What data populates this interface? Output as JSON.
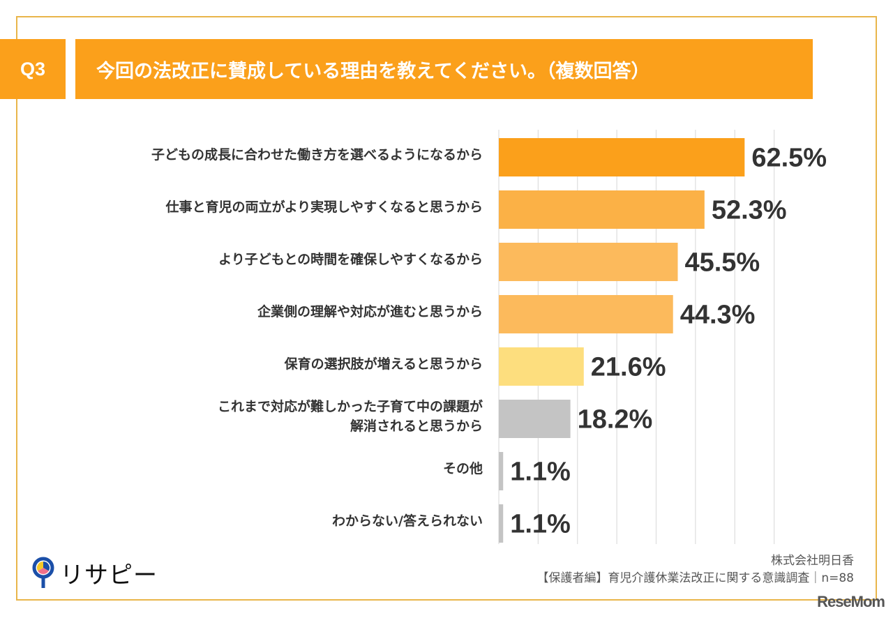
{
  "header": {
    "question_number": "Q3",
    "title": "今回の法改正に賛成している理由を教えてください。（複数回答）"
  },
  "chart_data": {
    "type": "bar",
    "orientation": "horizontal",
    "title": "今回の法改正に賛成している理由を教えてください。（複数回答）",
    "xlabel": "",
    "ylabel": "",
    "xlim": [
      0,
      100
    ],
    "grid": true,
    "grid_step": 10,
    "categories": [
      "子どもの成長に合わせた働き方を選べるようになるから",
      "仕事と育児の両立がより実現しやすくなると思うから",
      "より子どもとの時間を確保しやすくなるから",
      "企業側の理解や対応が進むと思うから",
      "保育の選択肢が増えると思うから",
      "これまで対応が難しかった子育て中の課題が\n解消されると思うから",
      "その他",
      "わからない/答えられない"
    ],
    "values": [
      62.5,
      52.3,
      45.5,
      44.3,
      21.6,
      18.2,
      1.1,
      1.1
    ],
    "value_labels": [
      "62.5%",
      "52.3%",
      "45.5%",
      "44.3%",
      "21.6%",
      "18.2%",
      "1.1%",
      "1.1%"
    ],
    "colors": [
      "#FBA01B",
      "#FBB146",
      "#FCBA5C",
      "#FCBA5C",
      "#FDDE7E",
      "#C4C4C4",
      "#C4C4C4",
      "#C4C4C4"
    ]
  },
  "labels": {
    "l0": "子どもの成長に合わせた働き方を選べるようになるから",
    "l1": "仕事と育児の両立がより実現しやすくなると思うから",
    "l2": "より子どもとの時間を確保しやすくなるから",
    "l3": "企業側の理解や対応が進むと思うから",
    "l4": "保育の選択肢が増えると思うから",
    "l5a": "これまで対応が難しかった子育て中の課題が",
    "l5b": "解消されると思うから",
    "l6": "その他",
    "l7": "わからない/答えられない"
  },
  "footer": {
    "logo_text": "リサピー",
    "company": "株式会社明日香",
    "survey": "【保護者編】育児介護休業法改正に関する意識調査｜n=88",
    "watermark": "ReseMom"
  },
  "colors": {
    "accent": "#FBA01B",
    "frame": "#E9B54A"
  }
}
